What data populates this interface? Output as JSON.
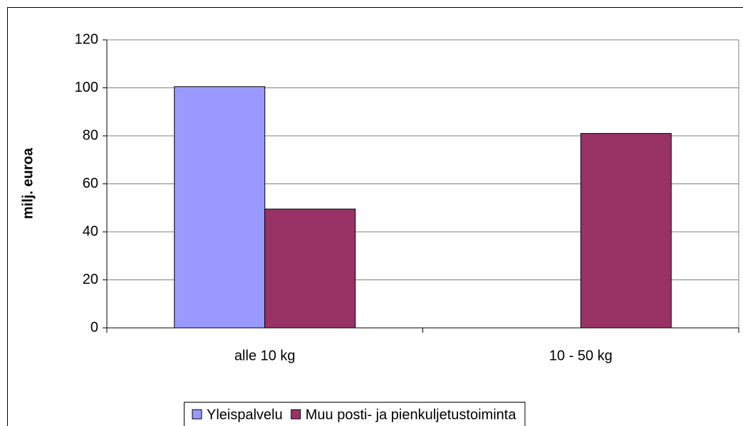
{
  "chart_data": {
    "type": "bar",
    "categories": [
      "alle 10 kg",
      "10 - 50 kg"
    ],
    "series": [
      {
        "name": "Yleispalvelu",
        "color": "#9999ff",
        "values": [
          100.5,
          null
        ]
      },
      {
        "name": "Muu posti- ja pienkuljetustoiminta",
        "color": "#993366",
        "values": [
          49.5,
          81
        ]
      }
    ],
    "ylabel": "milj. euroa",
    "ylim": [
      0,
      120
    ],
    "yticks": [
      0,
      20,
      40,
      60,
      80,
      100,
      120
    ],
    "grid": true,
    "legend": "bottom"
  }
}
